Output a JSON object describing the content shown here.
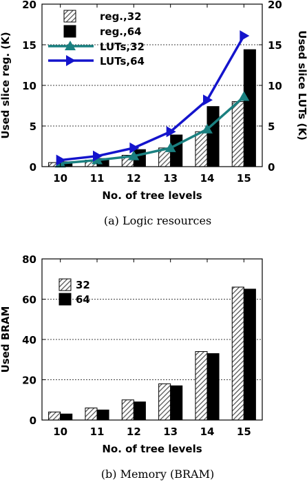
{
  "chart_data": [
    {
      "type": "bar",
      "caption": "(a) Logic resources",
      "xlabel": "No. of tree levels",
      "ylabel": "Used slice reg. (K)",
      "y2label": "Used slice LUTs (K)",
      "categories": [
        "10",
        "11",
        "12",
        "13",
        "14",
        "15"
      ],
      "ylim": [
        0,
        20
      ],
      "y2lim": [
        0,
        20
      ],
      "yticks": [
        "0",
        "5",
        "10",
        "15",
        "20"
      ],
      "grid": "horizontal dotted",
      "legend": "top-left",
      "series": [
        {
          "name": "reg.,32",
          "type": "bar",
          "pattern": "hatched",
          "axis": "left",
          "values": [
            0.5,
            0.8,
            1.4,
            2.3,
            4.3,
            8.0
          ]
        },
        {
          "name": "reg.,64",
          "type": "bar",
          "pattern": "solid",
          "axis": "left",
          "values": [
            0.6,
            1.0,
            2.1,
            3.9,
            7.4,
            14.4
          ]
        },
        {
          "name": "LUTs,32",
          "type": "line",
          "marker": "triangle-up",
          "color": "#1a8080",
          "axis": "right",
          "values": [
            0.4,
            0.8,
            1.3,
            2.3,
            4.6,
            8.6
          ]
        },
        {
          "name": "LUTs,64",
          "type": "line",
          "marker": "triangle-right",
          "color": "#1414cc",
          "axis": "right",
          "values": [
            0.8,
            1.3,
            2.3,
            4.3,
            8.2,
            16.1
          ]
        }
      ]
    },
    {
      "type": "bar",
      "caption": "(b) Memory (BRAM)",
      "xlabel": "No. of tree levels",
      "ylabel": "Used BRAM",
      "categories": [
        "10",
        "11",
        "12",
        "13",
        "14",
        "15"
      ],
      "ylim": [
        0,
        80
      ],
      "yticks": [
        "0",
        "20",
        "40",
        "60",
        "80"
      ],
      "grid": "horizontal dotted",
      "legend": "top-left",
      "series": [
        {
          "name": "32",
          "pattern": "hatched",
          "values": [
            4,
            6,
            10,
            18,
            34,
            66
          ]
        },
        {
          "name": "64",
          "pattern": "solid",
          "values": [
            3,
            5,
            9,
            17,
            33,
            65
          ]
        }
      ]
    }
  ]
}
